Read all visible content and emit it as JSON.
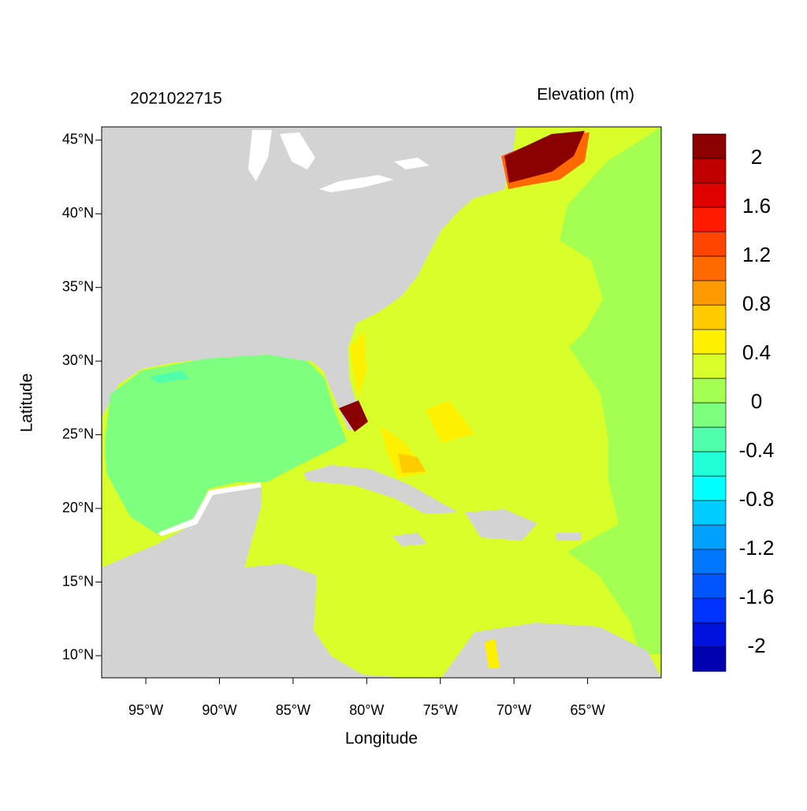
{
  "chart_data": {
    "type": "contour-map",
    "title": "2021022715",
    "x_label": "Longitude",
    "y_label": "Latitude",
    "xlim": [
      -98,
      -60
    ],
    "ylim": [
      8.5,
      45.9
    ],
    "xticks": [
      {
        "value": -95,
        "label": "95°W"
      },
      {
        "value": -90,
        "label": "90°W"
      },
      {
        "value": -85,
        "label": "85°W"
      },
      {
        "value": -80,
        "label": "80°W"
      },
      {
        "value": -75,
        "label": "75°W"
      },
      {
        "value": -70,
        "label": "70°W"
      },
      {
        "value": -65,
        "label": "65°W"
      }
    ],
    "yticks": [
      {
        "value": 10,
        "label": "10°N"
      },
      {
        "value": 15,
        "label": "15°N"
      },
      {
        "value": 20,
        "label": "20°N"
      },
      {
        "value": 25,
        "label": "25°N"
      },
      {
        "value": 30,
        "label": "30°N"
      },
      {
        "value": 35,
        "label": "35°N"
      },
      {
        "value": 40,
        "label": "40°N"
      },
      {
        "value": 45,
        "label": "45°N"
      }
    ],
    "colorbar": {
      "title": "Elevation (m)",
      "levels": [
        -2,
        -1.8,
        -1.6,
        -1.4,
        -1.2,
        -1,
        -0.8,
        -0.6,
        -0.4,
        -0.2,
        0,
        0.2,
        0.4,
        0.6,
        0.8,
        1,
        1.2,
        1.4,
        1.6,
        1.8,
        2
      ],
      "colors": [
        "#0000b0",
        "#0011dd",
        "#0033ff",
        "#0055ff",
        "#0077ff",
        "#00a0ff",
        "#00ccff",
        "#00ffff",
        "#20ffd5",
        "#50ffaa",
        "#7fff7f",
        "#a4ff50",
        "#d9ff2a",
        "#fff000",
        "#ffcc00",
        "#ff9900",
        "#ff6a00",
        "#ff4500",
        "#ff1a00",
        "#e00000",
        "#c00000",
        "#8b0000"
      ],
      "ticks": [
        -2,
        -1.6,
        -1.2,
        -0.8,
        -0.4,
        0,
        0.4,
        0.8,
        1.2,
        1.6,
        2
      ]
    }
  }
}
